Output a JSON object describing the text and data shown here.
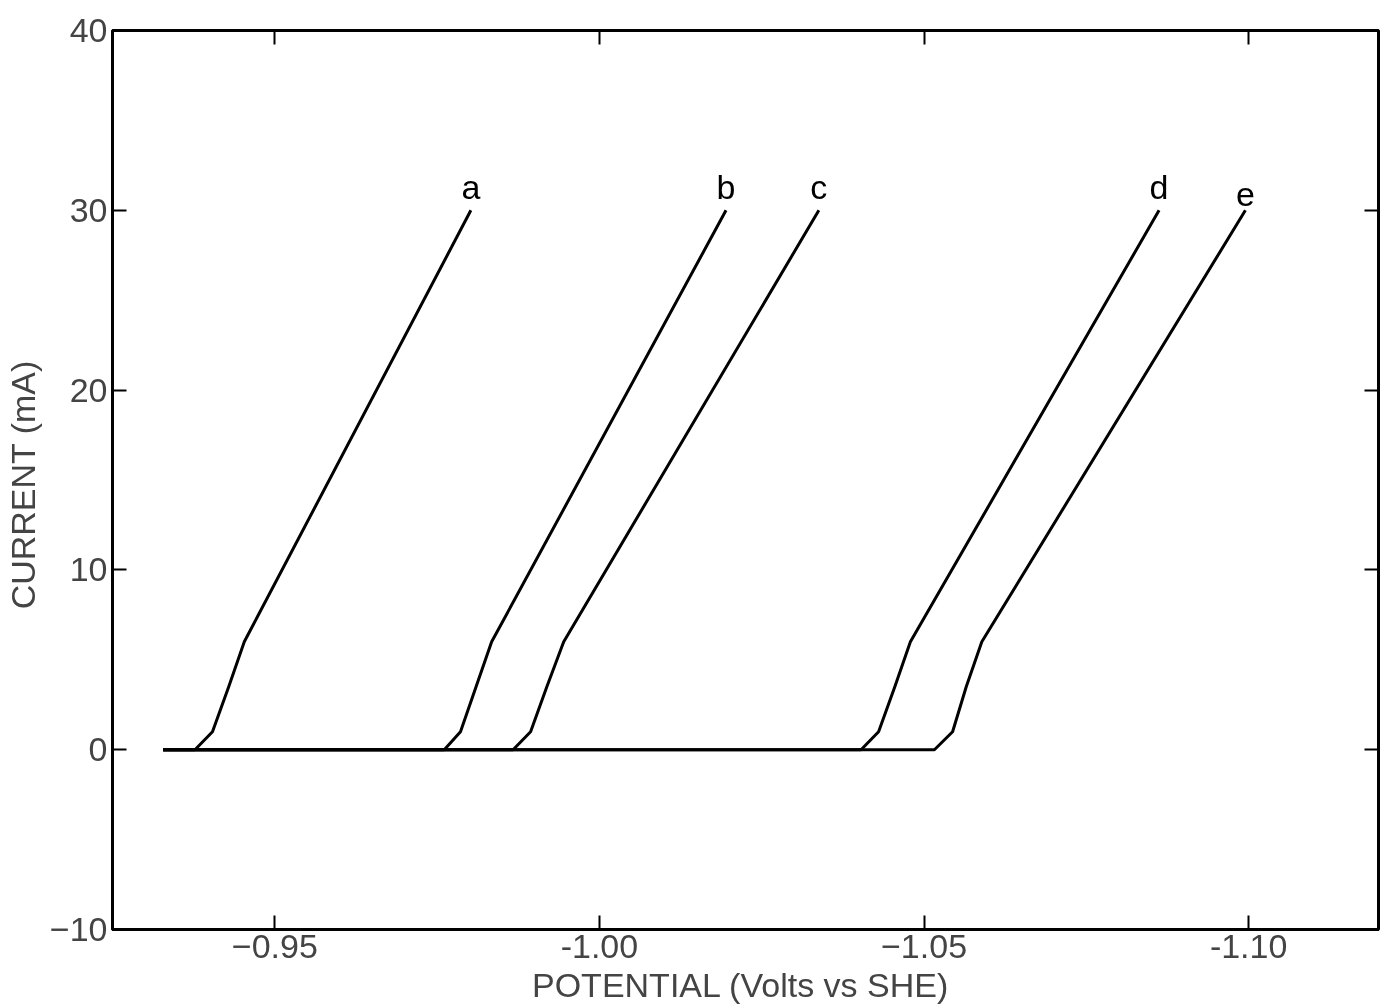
{
  "chart_data": {
    "type": "line",
    "xlabel": "POTENTIAL  (Volts vs SHE)",
    "ylabel": "CURRENT  (mA)",
    "xlim": [
      -0.925,
      -1.12
    ],
    "ylim": [
      -10,
      40
    ],
    "xticks": [
      -0.95,
      {
        "value": -1.0,
        "label": "-1.00"
      },
      -1.05,
      {
        "value": -1.1,
        "label": "-1.10"
      }
    ],
    "yticks": [
      -10,
      0,
      10,
      20,
      30,
      40
    ],
    "grid": false,
    "marker": "none",
    "line_style": "solid",
    "series": [
      {
        "name": "a",
        "color": "#000000",
        "x": [
          -0.9328,
          -0.9377,
          -0.9404,
          -0.9429,
          -0.9453,
          -0.9802
        ],
        "values": [
          0,
          0,
          1,
          3.5,
          6,
          30
        ]
      },
      {
        "name": "b",
        "color": "#000000",
        "x": [
          -0.9328,
          -0.9761,
          -0.9786,
          -0.981,
          -0.9834,
          -1.0195
        ],
        "values": [
          0,
          0,
          1,
          3.5,
          6,
          30
        ]
      },
      {
        "name": "c",
        "color": "#000000",
        "x": [
          -0.9328,
          -0.9867,
          -0.9894,
          -0.9919,
          -0.9945,
          -1.0338
        ],
        "values": [
          0,
          0,
          1,
          3.5,
          6,
          30
        ]
      },
      {
        "name": "d",
        "color": "#000000",
        "x": [
          -0.9328,
          -1.0403,
          -1.043,
          -1.0455,
          -1.0479,
          -1.0862
        ],
        "values": [
          0,
          0,
          1,
          3.5,
          6,
          30
        ]
      },
      {
        "name": "e",
        "color": "#000000",
        "x": [
          -0.9328,
          -1.0516,
          -1.0544,
          -1.0565,
          -1.0589,
          -1.0995
        ],
        "values": [
          0,
          0,
          1,
          3.5,
          6,
          30
        ]
      }
    ]
  }
}
